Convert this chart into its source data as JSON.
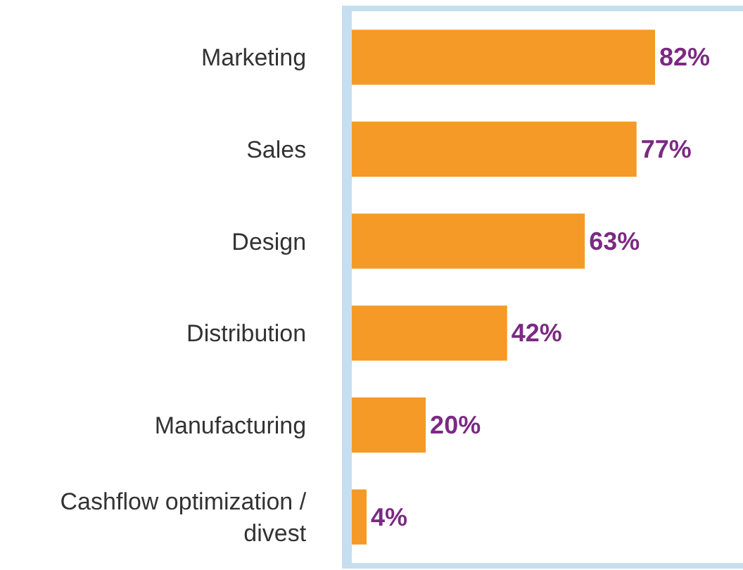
{
  "chart_data": {
    "type": "bar",
    "orientation": "horizontal",
    "categories": [
      "Marketing",
      "Sales",
      "Design",
      "Distribution",
      "Manufacturing",
      "Cashflow optimization / divest"
    ],
    "values": [
      82,
      77,
      63,
      42,
      20,
      4
    ],
    "value_labels": [
      "82%",
      "77%",
      "63%",
      "42%",
      "20%",
      "4%"
    ],
    "color": "#f59a26"
  }
}
